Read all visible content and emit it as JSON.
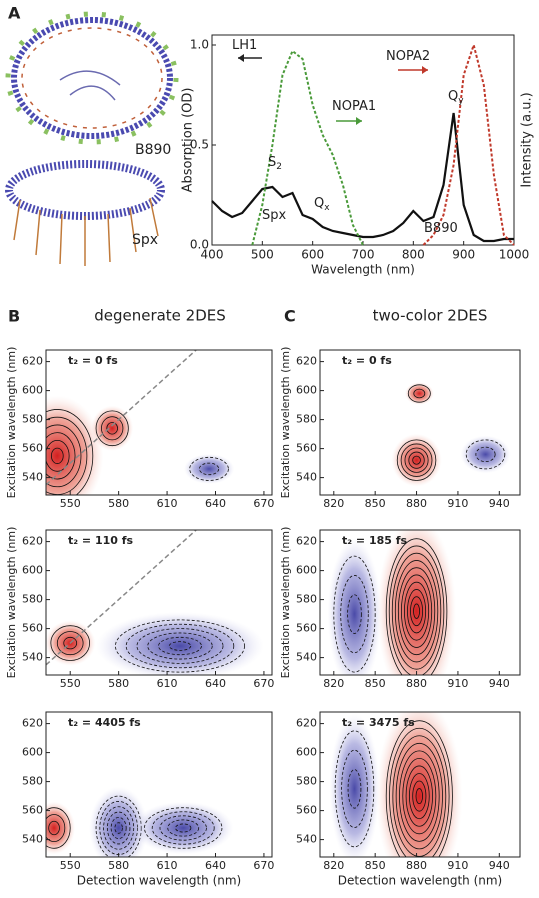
{
  "chart_data": [
    {
      "type": "line",
      "panel": "A",
      "xlabel": "Wavelength (nm)",
      "ylabel": "Absorption (OD)",
      "y2label": "Intensity (a.u.)",
      "x": [
        400,
        420,
        440,
        460,
        480,
        500,
        520,
        540,
        560,
        580,
        600,
        620,
        640,
        660,
        680,
        700,
        720,
        740,
        760,
        780,
        800,
        820,
        840,
        860,
        880,
        900,
        920,
        940,
        960,
        980,
        1000
      ],
      "xlim": [
        400,
        1000
      ],
      "xticks": [
        400,
        500,
        600,
        700,
        800,
        900,
        1000
      ],
      "ylim": [
        0,
        1.05
      ],
      "yticks": [
        {
          "value": 0,
          "label": "0.0"
        },
        {
          "value": 0.5,
          "label": "0.5"
        },
        {
          "value": 1,
          "label": "1.0"
        }
      ],
      "y2lim": [
        0,
        1.05
      ],
      "series": [
        {
          "name": "Absorption",
          "color": "#111111",
          "style": "solid",
          "values": [
            0.22,
            0.17,
            0.14,
            0.16,
            0.22,
            0.28,
            0.29,
            0.24,
            0.26,
            0.15,
            0.13,
            0.09,
            0.07,
            0.06,
            0.05,
            0.04,
            0.04,
            0.05,
            0.07,
            0.11,
            0.17,
            0.12,
            0.14,
            0.3,
            0.66,
            0.2,
            0.05,
            0.02,
            0.02,
            0.03,
            0.03
          ]
        },
        {
          "name": "NOPA1",
          "color": "#4a9a3a",
          "style": "dashed",
          "axis": "y2",
          "values": [
            null,
            null,
            null,
            null,
            0,
            0.2,
            0.5,
            0.85,
            0.97,
            0.93,
            0.7,
            0.55,
            0.45,
            0.3,
            0.1,
            0,
            null,
            null,
            null,
            null,
            null,
            null,
            null,
            null,
            null,
            null,
            null,
            null,
            null,
            null,
            null
          ]
        },
        {
          "name": "NOPA2",
          "color": "#c0392b",
          "style": "dashed",
          "axis": "y2",
          "values": [
            null,
            null,
            null,
            null,
            null,
            null,
            null,
            null,
            null,
            null,
            null,
            null,
            null,
            null,
            null,
            null,
            null,
            null,
            null,
            null,
            null,
            0,
            0.05,
            0.15,
            0.4,
            0.85,
            1,
            0.8,
            0.35,
            0.05,
            0
          ]
        }
      ],
      "annotations": [
        {
          "text": "LH1",
          "color": "#222222"
        },
        {
          "text": "NOPA1",
          "color": "#4a9a3a"
        },
        {
          "text": "NOPA2",
          "color": "#c0392b"
        },
        {
          "text": "S",
          "sub": "2",
          "color": "#c8602a"
        },
        {
          "text": "Spx",
          "color": "#c8602a"
        },
        {
          "text": "Q",
          "sub": "x",
          "color": "#3a3a8a"
        },
        {
          "text": "Q",
          "sub": "y",
          "color": "#3a3a8a"
        },
        {
          "text": "B890",
          "color": "#3a3a8a"
        }
      ],
      "structure_labels": [
        {
          "text": "B890",
          "color": "#3a3a9a"
        },
        {
          "text": "Spx",
          "color": "#c0522a"
        }
      ]
    },
    {
      "type": "contour",
      "panel": "B",
      "title": "degenerate 2DES",
      "label": "t₂ = 0 fs",
      "ylabel": "Excitation wavelength (nm)",
      "xlim": [
        535,
        675
      ],
      "xticks": [
        550,
        580,
        610,
        640,
        670
      ],
      "ylim": [
        528,
        628
      ],
      "yticks": [
        540,
        560,
        580,
        600,
        620
      ]
    },
    {
      "type": "contour",
      "label": "t₂ = 110 fs",
      "ylabel": "Excitation wavelength (nm)",
      "xlim": [
        535,
        675
      ],
      "xticks": [
        550,
        580,
        610,
        640,
        670
      ],
      "ylim": [
        528,
        628
      ],
      "yticks": [
        540,
        560,
        580,
        600,
        620
      ]
    },
    {
      "type": "contour",
      "label": "t₂ = 4405 fs",
      "xlabel": "Detection wavelength (nm)",
      "xlim": [
        535,
        675
      ],
      "xticks": [
        550,
        580,
        610,
        640,
        670
      ],
      "ylim": [
        528,
        628
      ],
      "yticks": [
        540,
        560,
        580,
        600,
        620
      ]
    },
    {
      "type": "contour",
      "panel": "C",
      "title": "two-color 2DES",
      "label": "t₂ = 0 fs",
      "ylabel": "Excitation wavelength (nm)",
      "xlim": [
        810,
        955
      ],
      "xticks": [
        820,
        850,
        880,
        910,
        940
      ],
      "ylim": [
        528,
        628
      ],
      "yticks": [
        540,
        560,
        580,
        600,
        620
      ]
    },
    {
      "type": "contour",
      "label": "t₂ = 185 fs",
      "ylabel": "Excitation wavelength (nm)",
      "xlim": [
        810,
        955
      ],
      "xticks": [
        820,
        850,
        880,
        910,
        940
      ],
      "ylim": [
        528,
        628
      ],
      "yticks": [
        540,
        560,
        580,
        600,
        620
      ]
    },
    {
      "type": "contour",
      "label": "t₂ = 3475 fs",
      "xlabel": "Detection wavelength (nm)",
      "xlim": [
        810,
        955
      ],
      "xticks": [
        820,
        850,
        880,
        910,
        940
      ],
      "ylim": [
        528,
        628
      ],
      "yticks": [
        540,
        560,
        580,
        600,
        620
      ]
    }
  ]
}
